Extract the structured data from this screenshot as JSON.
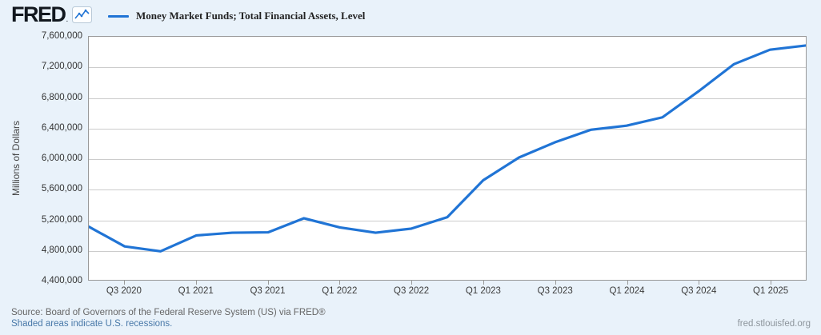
{
  "header": {
    "logo_text": "FRED",
    "logo_tm": ".",
    "legend": {
      "label": "Money Market Funds; Total Financial Assets, Level"
    }
  },
  "colors": {
    "background": "#e9f2fa",
    "plot_background": "#ffffff",
    "line": "#2074d5",
    "gridline": "#cccccc",
    "plot_border": "#999999",
    "link": "#4878a8"
  },
  "chart_data": {
    "type": "line",
    "title": "Money Market Funds; Total Financial Assets, Level",
    "ylabel": "Millions of Dollars",
    "units": "Millions of Dollars",
    "frequency": "quarterly",
    "x": [
      "2020 Q2",
      "2020 Q3",
      "2020 Q4",
      "2021 Q1",
      "2021 Q2",
      "2021 Q3",
      "2021 Q4",
      "2022 Q1",
      "2022 Q2",
      "2022 Q3",
      "2022 Q4",
      "2023 Q1",
      "2023 Q2",
      "2023 Q3",
      "2023 Q4",
      "2024 Q1",
      "2024 Q2",
      "2024 Q3",
      "2024 Q4",
      "2025 Q1",
      "2025 Q2"
    ],
    "values": [
      5100000,
      4840000,
      4775000,
      4985000,
      5020000,
      5025000,
      5210000,
      5090000,
      5020000,
      5075000,
      5225000,
      5710000,
      6010000,
      6210000,
      6375000,
      6430000,
      6540000,
      6880000,
      7240000,
      7430000,
      7485000
    ],
    "ylim": [
      4400000,
      7600000
    ],
    "ytick_step": 400000,
    "yticks": [
      {
        "label": "7,600,000",
        "value": 7600000
      },
      {
        "label": "7,200,000",
        "value": 7200000
      },
      {
        "label": "6,800,000",
        "value": 6800000
      },
      {
        "label": "6,400,000",
        "value": 6400000
      },
      {
        "label": "6,000,000",
        "value": 6000000
      },
      {
        "label": "5,600,000",
        "value": 5600000
      },
      {
        "label": "5,200,000",
        "value": 5200000
      },
      {
        "label": "4,800,000",
        "value": 4800000
      },
      {
        "label": "4,400,000",
        "value": 4400000
      }
    ],
    "xticks": [
      {
        "label": "Q3 2020",
        "index": 1
      },
      {
        "label": "Q1 2021",
        "index": 3
      },
      {
        "label": "Q3 2021",
        "index": 5
      },
      {
        "label": "Q1 2022",
        "index": 7
      },
      {
        "label": "Q3 2022",
        "index": 9
      },
      {
        "label": "Q1 2023",
        "index": 11
      },
      {
        "label": "Q3 2023",
        "index": 13
      },
      {
        "label": "Q1 2024",
        "index": 15
      },
      {
        "label": "Q3 2024",
        "index": 17
      },
      {
        "label": "Q1 2025",
        "index": 19
      }
    ],
    "grid": true,
    "legend_position": "top-left",
    "line_color": "#2074d5"
  },
  "footer": {
    "source": "Source: Board of Governors of the Federal Reserve System (US) via FRED®",
    "recession_note": "Shaded areas indicate U.S. recessions.",
    "site_url": "fred.stlouisfed.org"
  }
}
